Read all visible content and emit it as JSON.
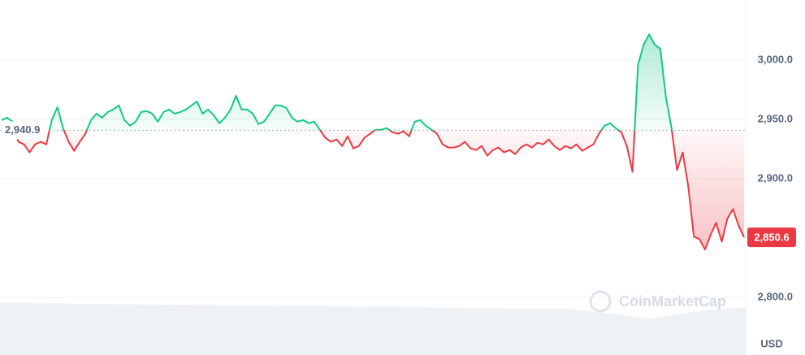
{
  "chart_data": {
    "type": "line",
    "values": [
      2949.5,
      2951.5,
      2948.1,
      2931.1,
      2929,
      2922.2,
      2929,
      2931.1,
      2929,
      2949.5,
      2960.4,
      2942.7,
      2931.1,
      2923.5,
      2931.1,
      2937.9,
      2949.5,
      2954.9,
      2951.5,
      2956.3,
      2958.4,
      2961.8,
      2949.5,
      2944.7,
      2948.1,
      2956.3,
      2957,
      2954.9,
      2948.1,
      2956.3,
      2958.4,
      2954.9,
      2956.3,
      2958.4,
      2961.8,
      2965.2,
      2954.9,
      2958.4,
      2953.6,
      2946.8,
      2951.5,
      2958.4,
      2970,
      2958.4,
      2958.4,
      2954.9,
      2946.1,
      2948.1,
      2954.9,
      2961.8,
      2961.8,
      2959.7,
      2951.5,
      2948.1,
      2949.5,
      2946.8,
      2948.1,
      2941.3,
      2934.5,
      2931.1,
      2933.1,
      2927.6,
      2935.8,
      2925.6,
      2927.6,
      2934.5,
      2937.9,
      2941.3,
      2941.3,
      2942.7,
      2939.2,
      2937.9,
      2940,
      2935.8,
      2948.1,
      2949.5,
      2944.7,
      2941.3,
      2937.9,
      2929,
      2926.3,
      2926.3,
      2927.6,
      2931.1,
      2925.6,
      2924.2,
      2927.6,
      2919.5,
      2924.2,
      2926.3,
      2922.2,
      2924.2,
      2920.8,
      2926.3,
      2929,
      2926.3,
      2930.4,
      2929,
      2933.1,
      2927.6,
      2924.2,
      2927.6,
      2925.6,
      2929,
      2923.5,
      2926.3,
      2929,
      2937.9,
      2944.7,
      2946.8,
      2942.7,
      2939.2,
      2927.6,
      2905.8,
      2995.9,
      3013,
      3021.8,
      3013,
      3009.6,
      2968.6,
      2942.7,
      2907.2,
      2922.2,
      2893.5,
      2851.2,
      2849.1,
      2840.3,
      2852.6,
      2862.8,
      2847,
      2866.2,
      2874.4,
      2860.8,
      2850.6
    ],
    "up_color": "#16c784",
    "down_color": "#ea3943",
    "ylim": [
      2800,
      3048
    ],
    "yticks": [
      {
        "value": 2800,
        "label": "2,800.0"
      },
      {
        "value": 2900,
        "label": "2,900.0"
      },
      {
        "value": 2950,
        "label": "2,950.0"
      },
      {
        "value": 3000,
        "label": "3,000.0"
      }
    ],
    "grid": true,
    "baseline": {
      "value": 2940.9,
      "label": "2,940.9"
    },
    "last_price": {
      "value": 2850.6,
      "label": "2,850.6"
    },
    "y_unit": "USD",
    "watermark": "CoinMarketCap"
  }
}
